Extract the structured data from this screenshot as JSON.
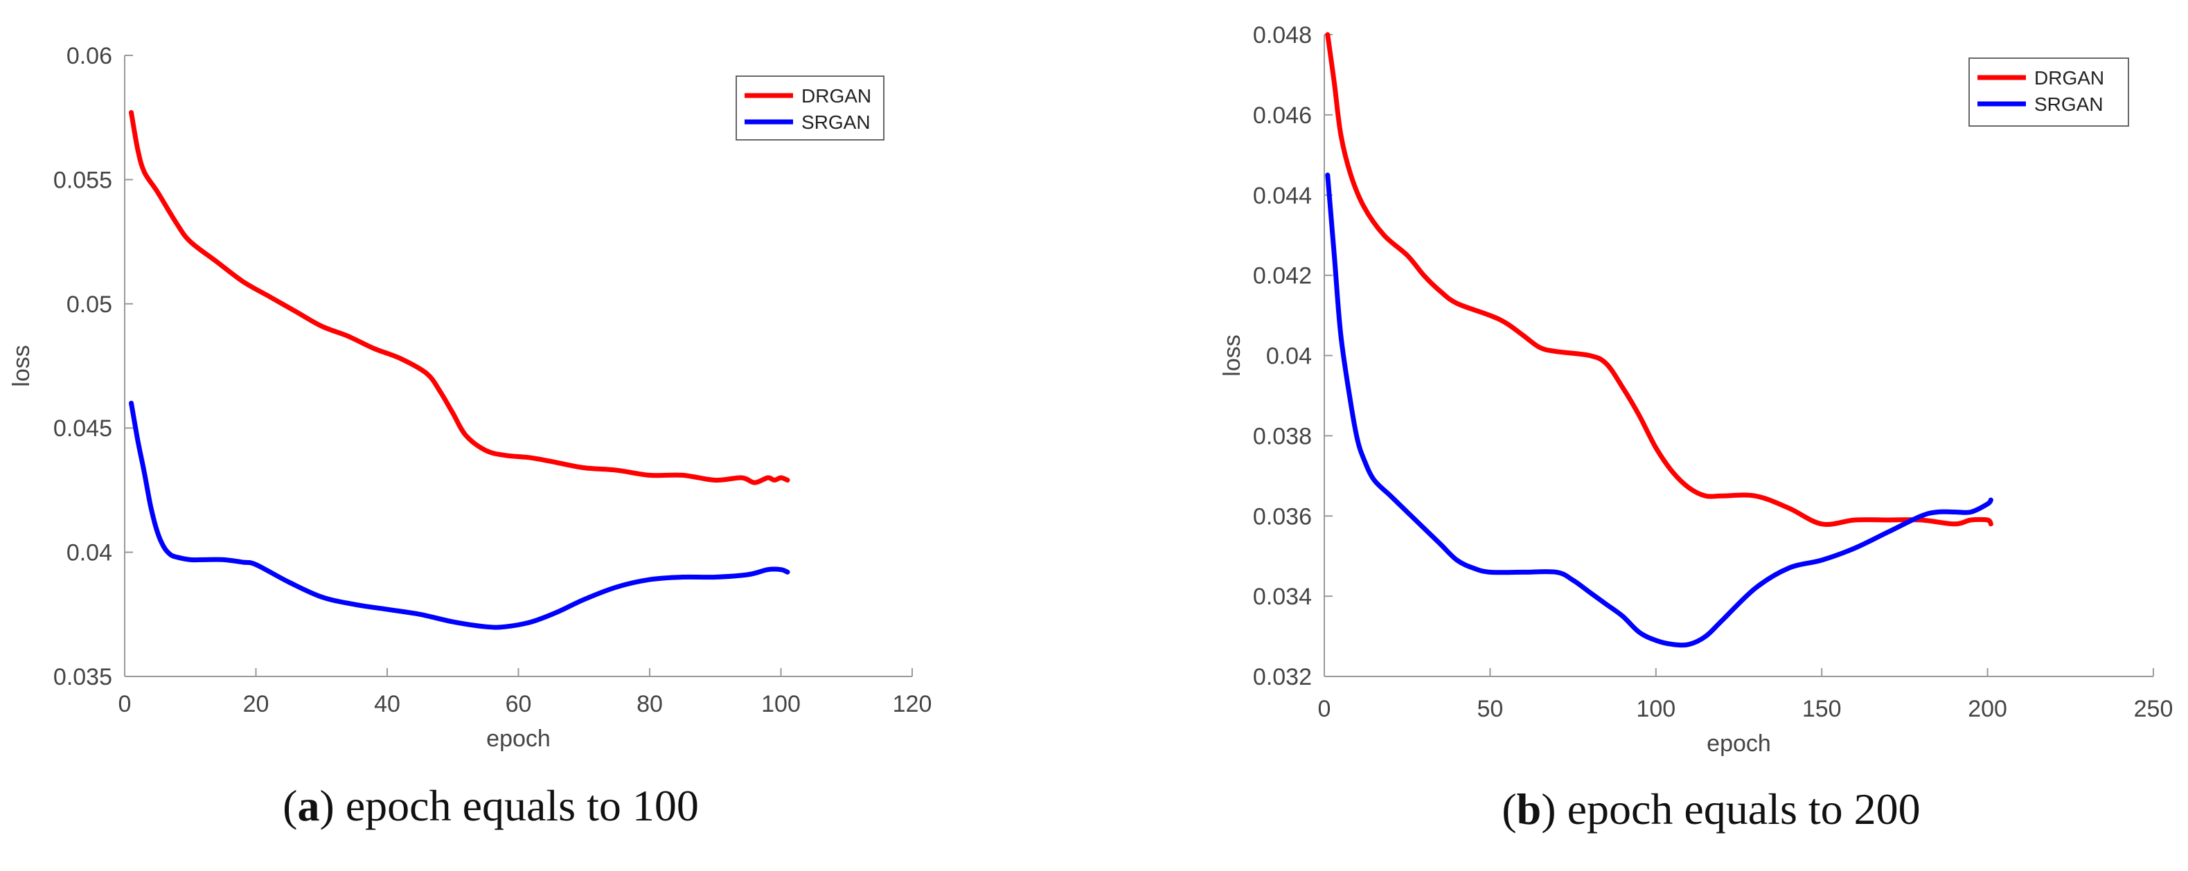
{
  "colors": {
    "drgan": "#ff0000",
    "srgan": "#0000ff",
    "axis": "#999999"
  },
  "chart_data": [
    {
      "type": "line",
      "panel": "a",
      "xlabel": "epoch",
      "ylabel": "loss",
      "xlim": [
        0,
        120
      ],
      "ylim": [
        0.035,
        0.06
      ],
      "xticks": [
        0,
        20,
        40,
        60,
        80,
        100,
        120
      ],
      "yticks": [
        0.035,
        0.04,
        0.045,
        0.05,
        0.055,
        0.06
      ],
      "xtick_labels": [
        "0",
        "20",
        "40",
        "60",
        "80",
        "100",
        "120"
      ],
      "ytick_labels": [
        "0.035",
        "0.04",
        "0.045",
        "0.05",
        "0.055",
        "0.06"
      ],
      "legend_position": "top-right",
      "caption": {
        "open": "(",
        "letter": "a",
        "rest": ") epoch equals to 100"
      },
      "series": [
        {
          "name": "DRGAN",
          "color": "#ff0000",
          "x": [
            1,
            2,
            3,
            5,
            8,
            10,
            14,
            18,
            22,
            26,
            30,
            34,
            38,
            42,
            46,
            48,
            50,
            52,
            55,
            58,
            62,
            66,
            70,
            75,
            80,
            85,
            90,
            94,
            96,
            98,
            99,
            100,
            101
          ],
          "y": [
            0.0577,
            0.0562,
            0.0553,
            0.0545,
            0.0532,
            0.0525,
            0.0517,
            0.0509,
            0.0503,
            0.0497,
            0.0491,
            0.0487,
            0.0482,
            0.0478,
            0.0472,
            0.0465,
            0.0456,
            0.0447,
            0.0441,
            0.0439,
            0.0438,
            0.0436,
            0.0434,
            0.0433,
            0.0431,
            0.0431,
            0.0429,
            0.043,
            0.0428,
            0.043,
            0.0429,
            0.043,
            0.0429
          ]
        },
        {
          "name": "SRGAN",
          "color": "#0000ff",
          "x": [
            1,
            2,
            3,
            4,
            5,
            6,
            7,
            8,
            10,
            12,
            15,
            18,
            20,
            25,
            30,
            35,
            40,
            45,
            50,
            55,
            58,
            62,
            66,
            70,
            75,
            80,
            85,
            90,
            95,
            98,
            100,
            101
          ],
          "y": [
            0.046,
            0.0445,
            0.0432,
            0.0418,
            0.0408,
            0.0402,
            0.0399,
            0.0398,
            0.0397,
            0.0397,
            0.0397,
            0.0396,
            0.0395,
            0.0388,
            0.0382,
            0.0379,
            0.0377,
            0.0375,
            0.0372,
            0.037,
            0.037,
            0.0372,
            0.0376,
            0.0381,
            0.0386,
            0.0389,
            0.039,
            0.039,
            0.0391,
            0.0393,
            0.0393,
            0.0392
          ]
        }
      ]
    },
    {
      "type": "line",
      "panel": "b",
      "xlabel": "epoch",
      "ylabel": "loss",
      "xlim": [
        0,
        250
      ],
      "ylim": [
        0.032,
        0.048
      ],
      "xticks": [
        0,
        50,
        100,
        150,
        200,
        250
      ],
      "yticks": [
        0.032,
        0.034,
        0.036,
        0.038,
        0.04,
        0.042,
        0.044,
        0.046,
        0.048
      ],
      "xtick_labels": [
        "0",
        "50",
        "100",
        "150",
        "200",
        "250"
      ],
      "ytick_labels": [
        "0.032",
        "0.034",
        "0.036",
        "0.038",
        "0.04",
        "0.042",
        "0.044",
        "0.046",
        "0.048"
      ],
      "legend_position": "top-right",
      "caption": {
        "open": "(",
        "letter": "b",
        "rest": ") epoch equals to 200"
      },
      "series": [
        {
          "name": "DRGAN",
          "color": "#ff0000",
          "x": [
            1,
            3,
            5,
            8,
            12,
            18,
            25,
            30,
            35,
            40,
            50,
            55,
            60,
            65,
            70,
            80,
            85,
            90,
            95,
            100,
            105,
            110,
            115,
            120,
            130,
            140,
            150,
            160,
            170,
            180,
            190,
            195,
            200,
            201
          ],
          "y": [
            0.048,
            0.0468,
            0.0455,
            0.0445,
            0.0437,
            0.043,
            0.0425,
            0.042,
            0.0416,
            0.0413,
            0.041,
            0.0408,
            0.0405,
            0.0402,
            0.0401,
            0.04,
            0.0398,
            0.0392,
            0.0385,
            0.0377,
            0.0371,
            0.0367,
            0.0365,
            0.0365,
            0.0365,
            0.0362,
            0.0358,
            0.0359,
            0.0359,
            0.0359,
            0.0358,
            0.0359,
            0.0359,
            0.0358
          ]
        },
        {
          "name": "SRGAN",
          "color": "#0000ff",
          "x": [
            1,
            3,
            5,
            8,
            10,
            12,
            15,
            20,
            25,
            30,
            35,
            40,
            45,
            50,
            60,
            70,
            75,
            80,
            85,
            90,
            95,
            100,
            105,
            110,
            115,
            120,
            130,
            140,
            150,
            160,
            170,
            180,
            185,
            190,
            195,
            200,
            201
          ],
          "y": [
            0.0445,
            0.0425,
            0.0405,
            0.0388,
            0.0379,
            0.0374,
            0.0369,
            0.0365,
            0.0361,
            0.0357,
            0.0353,
            0.0349,
            0.0347,
            0.0346,
            0.0346,
            0.0346,
            0.0344,
            0.0341,
            0.0338,
            0.0335,
            0.0331,
            0.0329,
            0.0328,
            0.0328,
            0.033,
            0.0334,
            0.0342,
            0.0347,
            0.0349,
            0.0352,
            0.0356,
            0.036,
            0.0361,
            0.0361,
            0.0361,
            0.0363,
            0.0364
          ]
        }
      ]
    }
  ]
}
